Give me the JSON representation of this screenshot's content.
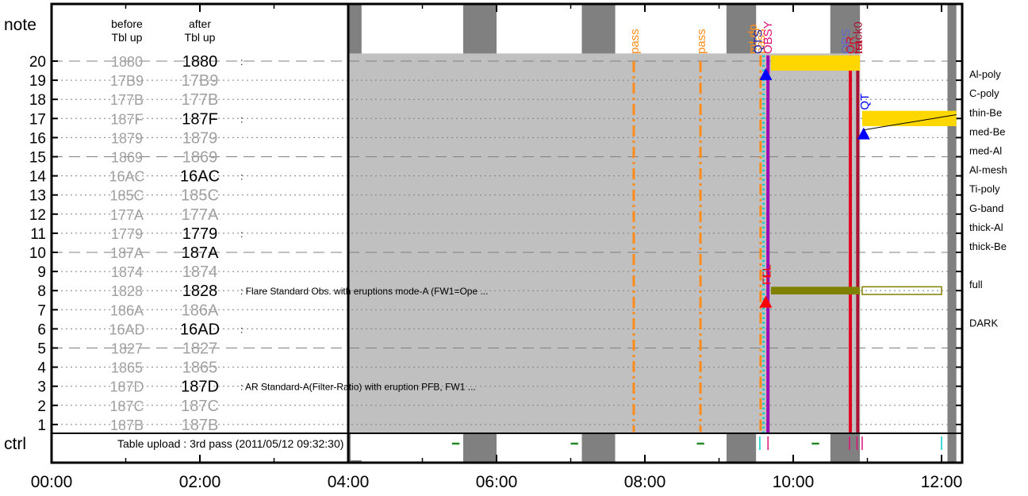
{
  "header": {
    "note_label": "note",
    "before_label_1": "before",
    "before_label_2": "Tbl up",
    "after_label_1": "after",
    "after_label_2": "Tbl up",
    "ctrl_label": "ctrl",
    "ctrl_text": "Table upload : 3rd pass (2011/05/12 09:32:30)"
  },
  "chart_data": {
    "type": "timeline",
    "x_range_hours": [
      0,
      12.2
    ],
    "x_ticks": [
      "00:00",
      "02:00",
      "04:00",
      "06:00",
      "08:00",
      "10:00",
      "12:00"
    ],
    "y_ticks": [
      "1",
      "2",
      "3",
      "4",
      "5",
      "6",
      "7",
      "8",
      "9",
      "10",
      "11",
      "12",
      "13",
      "14",
      "15",
      "16",
      "17",
      "18",
      "19",
      "20"
    ],
    "rows": [
      {
        "n": 20,
        "before": "1880",
        "after": "1880",
        "after_changed": true,
        "desc": ":",
        "filter": ""
      },
      {
        "n": 19,
        "before": "17B9",
        "after": "17B9",
        "after_changed": false,
        "desc": "",
        "filter": "Al-poly"
      },
      {
        "n": 18,
        "before": "177B",
        "after": "177B",
        "after_changed": false,
        "desc": "",
        "filter": "C-poly"
      },
      {
        "n": 17,
        "before": "187F",
        "after": "187F",
        "after_changed": true,
        "desc": ":",
        "filter": "thin-Be"
      },
      {
        "n": 16,
        "before": "1879",
        "after": "1879",
        "after_changed": false,
        "desc": "",
        "filter": "med-Be"
      },
      {
        "n": 15,
        "before": "1869",
        "after": "1869",
        "after_changed": false,
        "desc": "",
        "filter": "med-Al"
      },
      {
        "n": 14,
        "before": "16AC",
        "after": "16AC",
        "after_changed": true,
        "desc": ":",
        "filter": "Al-mesh"
      },
      {
        "n": 13,
        "before": "185C",
        "after": "185C",
        "after_changed": false,
        "desc": "",
        "filter": "Ti-poly"
      },
      {
        "n": 12,
        "before": "177A",
        "after": "177A",
        "after_changed": false,
        "desc": "",
        "filter": "G-band"
      },
      {
        "n": 11,
        "before": "1779",
        "after": "1779",
        "after_changed": true,
        "desc": ":",
        "filter": "thick-Al"
      },
      {
        "n": 10,
        "before": "187A",
        "after": "187A",
        "after_changed": true,
        "desc": "",
        "filter": "thick-Be"
      },
      {
        "n": 9,
        "before": "1874",
        "after": "1874",
        "after_changed": false,
        "desc": "",
        "filter": ""
      },
      {
        "n": 8,
        "before": "1828",
        "after": "1828",
        "after_changed": true,
        "desc": ": Flare Standard Obs. with eruptions mode-A (FW1=Ope ...",
        "filter": "full"
      },
      {
        "n": 7,
        "before": "186A",
        "after": "186A",
        "after_changed": false,
        "desc": "",
        "filter": ""
      },
      {
        "n": 6,
        "before": "16AD",
        "after": "16AD",
        "after_changed": true,
        "desc": ":",
        "filter": "DARK"
      },
      {
        "n": 5,
        "before": "1827",
        "after": "1827",
        "after_changed": false,
        "desc": "",
        "filter": ""
      },
      {
        "n": 4,
        "before": "1865",
        "after": "1865",
        "after_changed": false,
        "desc": "",
        "filter": ""
      },
      {
        "n": 3,
        "before": "187D",
        "after": "187D",
        "after_changed": true,
        "desc": ": AR Standard-A(Filter-Ratio) with eruption PFB, FW1 ...",
        "filter": ""
      },
      {
        "n": 2,
        "before": "187C",
        "after": "187C",
        "after_changed": false,
        "desc": "",
        "filter": ""
      },
      {
        "n": 1,
        "before": "187B",
        "after": "187B",
        "after_changed": false,
        "desc": "",
        "filter": ""
      }
    ],
    "night_bands": [
      [
        4.0,
        4.18
      ],
      [
        5.55,
        6.0
      ],
      [
        7.15,
        7.6
      ],
      [
        9.1,
        9.5
      ],
      [
        10.5,
        10.9
      ],
      [
        12.08,
        12.2
      ]
    ],
    "upload_boundary": 4.0,
    "gray_region": [
      4.0,
      10.9
    ],
    "gray_region_rows": [
      0.5,
      20.4
    ],
    "pass_lines": [
      {
        "t": 7.85,
        "label": "pass"
      },
      {
        "t": 8.75,
        "label": "pass"
      }
    ],
    "vertical_lines": [
      {
        "t": 9.56,
        "color": "#ff8c1a",
        "style": "dashdot",
        "label": "pass",
        "label_color": "#ff8c1a"
      },
      {
        "t": 9.6,
        "color": "#00cccc",
        "style": "dotted",
        "label": "",
        "label_color": ""
      },
      {
        "t": 9.66,
        "color": "#9c00b3",
        "style": "solid",
        "label": "OBSY",
        "label_color": "#dd1177"
      },
      {
        "t": 10.77,
        "color": "#e0001f",
        "style": "solid",
        "label": "OR rst",
        "label_color": "#e0001f"
      },
      {
        "t": 10.87,
        "color": "#aa1133",
        "style": "solid",
        "label": "track0",
        "label_color": "#aa1133"
      }
    ],
    "top_labels": [
      {
        "t": 9.55,
        "text": "mt.dp",
        "color": "#ff8c1a"
      },
      {
        "t": 9.62,
        "text": "QTS",
        "color": "#2222aa"
      },
      {
        "t": 10.8,
        "text": "OPS",
        "color": "#6666cc"
      }
    ],
    "markers": [
      {
        "t": 9.63,
        "row": 19.3,
        "color": "#0000ff",
        "label": ""
      },
      {
        "t": 10.95,
        "row": 16.2,
        "color": "#0000ff",
        "label": "QT"
      },
      {
        "t": 9.63,
        "row": 7.4,
        "color": "#ff0000",
        "label": "FL"
      }
    ],
    "yellow_bars": [
      {
        "t0": 9.7,
        "t1": 10.9,
        "row_lo": 19.5,
        "row_hi": 20.3
      },
      {
        "t0": 10.93,
        "t1": 12.2,
        "row_lo": 16.6,
        "row_hi": 17.4
      }
    ],
    "olive_bars": [
      {
        "t0": 9.7,
        "t1": 10.9,
        "row_lo": 7.8,
        "row_hi": 8.2,
        "filled": true
      },
      {
        "t0": 10.93,
        "t1": 12.0,
        "row_lo": 7.8,
        "row_hi": 8.2,
        "filled": false
      }
    ],
    "ctrl_marks": [
      {
        "t0": 5.4,
        "t1": 5.5,
        "color": "#228822"
      },
      {
        "t0": 7.0,
        "t1": 7.1,
        "color": "#228822"
      },
      {
        "t0": 8.7,
        "t1": 8.8,
        "color": "#228822"
      },
      {
        "t0": 10.25,
        "t1": 10.35,
        "color": "#228822"
      },
      {
        "t0": 9.55,
        "t1": 9.56,
        "color": "#00cccc"
      },
      {
        "t0": 9.66,
        "t1": 9.67,
        "color": "#dd1177"
      },
      {
        "t0": 10.76,
        "t1": 10.77,
        "color": "#dd1177"
      },
      {
        "t0": 10.86,
        "t1": 10.87,
        "color": "#dd1177"
      },
      {
        "t0": 10.93,
        "t1": 10.94,
        "color": "#dd1177"
      },
      {
        "t0": 12.0,
        "t1": 12.01,
        "color": "#00cccc"
      }
    ]
  },
  "colors": {
    "gray_region": "#c0c0c0",
    "night": "#808080",
    "yellow": "#ffd700",
    "olive": "#808000",
    "changed_text": "#000000",
    "unchanged_text": "#a0a0a0"
  }
}
